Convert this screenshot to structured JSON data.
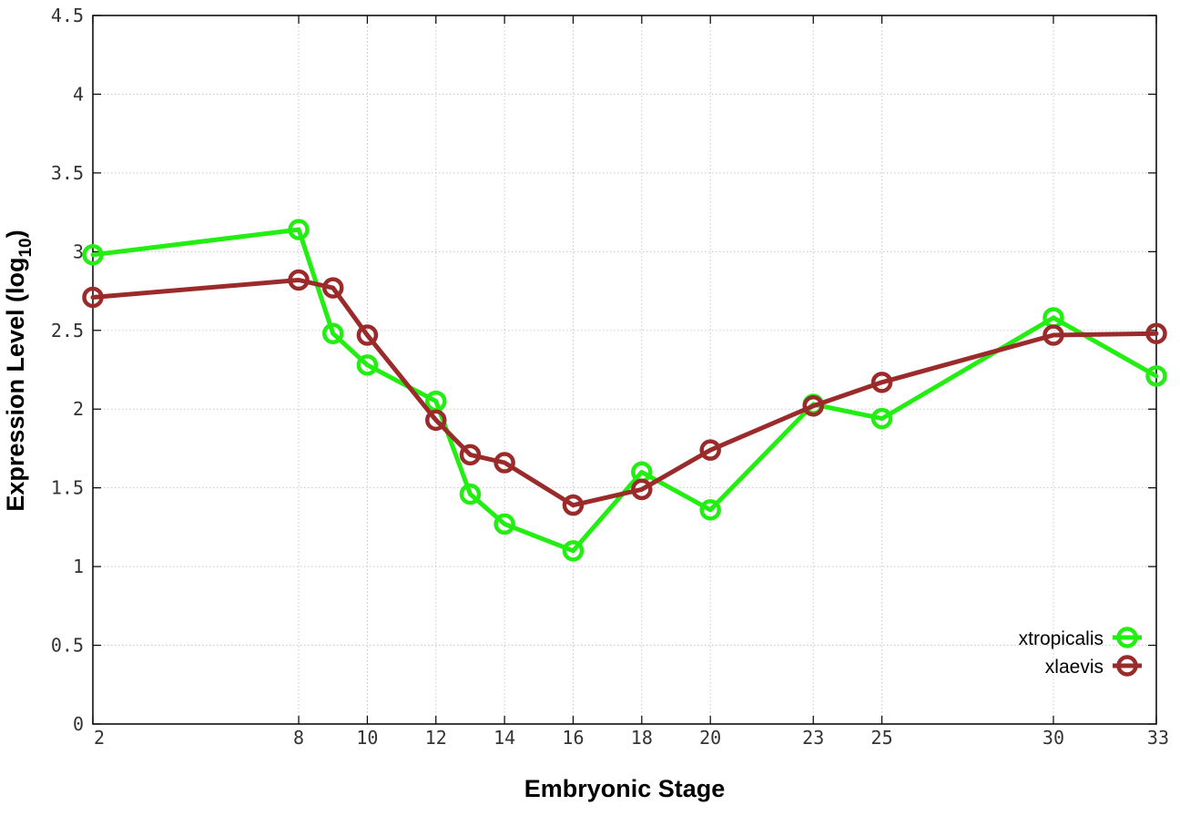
{
  "chart_data": {
    "type": "line",
    "xlabel": "Embryonic Stage",
    "ylabel": "Expression Level (log",
    "ylabel_subscript": "10",
    "ylabel_suffix": ")",
    "x": [
      2,
      8,
      9,
      10,
      12,
      13,
      14,
      16,
      18,
      20,
      23,
      25,
      30,
      33
    ],
    "xticks": [
      2,
      8,
      10,
      12,
      14,
      16,
      18,
      20,
      23,
      25,
      30,
      33
    ],
    "xlim": [
      2,
      33
    ],
    "ylim": [
      0,
      4.5
    ],
    "yticks": [
      0,
      0.5,
      1,
      1.5,
      2,
      2.5,
      3,
      3.5,
      4,
      4.5
    ],
    "grid": true,
    "legend_position": "bottom-right",
    "series": [
      {
        "name": "xtropicalis",
        "color": "#22ee11",
        "values": [
          2.98,
          3.14,
          2.48,
          2.28,
          2.05,
          1.46,
          1.27,
          1.1,
          1.6,
          1.36,
          2.03,
          1.94,
          2.58,
          2.21
        ]
      },
      {
        "name": "xlaevis",
        "color": "#9b2b2b",
        "values": [
          2.71,
          2.82,
          2.77,
          2.47,
          1.93,
          1.71,
          1.66,
          1.39,
          1.49,
          1.74,
          2.02,
          2.17,
          2.47,
          2.48
        ]
      }
    ]
  }
}
